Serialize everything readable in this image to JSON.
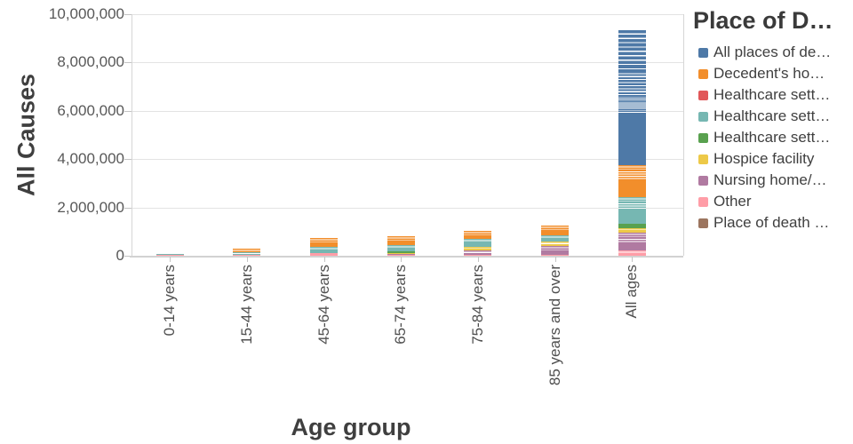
{
  "y_axis": {
    "title": "All Causes",
    "tick_labels": [
      "0",
      "2,000,000",
      "4,000,000",
      "6,000,000",
      "8,000,000",
      "10,000,000"
    ]
  },
  "x_axis": {
    "title": "Age group",
    "categories": [
      "0-14 years",
      "15-44 years",
      "45-64 years",
      "65-74 years",
      "75-84 years",
      "85 years and over",
      "All ages"
    ]
  },
  "legend": {
    "title": "Place of D…",
    "items": [
      {
        "label": "All places of de…",
        "key": "blue"
      },
      {
        "label": "Decedent's ho…",
        "key": "orange"
      },
      {
        "label": "Healthcare sett…",
        "key": "red"
      },
      {
        "label": "Healthcare sett…",
        "key": "teal"
      },
      {
        "label": "Healthcare sett…",
        "key": "green"
      },
      {
        "label": "Hospice facility",
        "key": "yellow"
      },
      {
        "label": "Nursing home/…",
        "key": "purple"
      },
      {
        "label": "Other",
        "key": "pink"
      },
      {
        "label": "Place of death …",
        "key": "brown"
      }
    ]
  },
  "colors": {
    "blue": "#4e79a7",
    "orange": "#f28e2b",
    "red": "#e15759",
    "teal": "#76b7b2",
    "green": "#59a14f",
    "yellow": "#edc948",
    "purple": "#b07aa1",
    "pink": "#ff9da7",
    "brown": "#9c755f"
  },
  "chart_data": {
    "type": "bar",
    "stacked": true,
    "title": "",
    "xlabel": "Age group",
    "ylabel": "All Causes",
    "ylim": [
      0,
      10000000
    ],
    "grid": true,
    "legend_position": "right",
    "legend_title": "Place of D…",
    "categories": [
      "0-14 years",
      "15-44 years",
      "45-64 years",
      "65-74 years",
      "75-84 years",
      "85 years and over",
      "All ages"
    ],
    "series": [
      {
        "name": "All places of de…",
        "key": "blue",
        "values": [
          0,
          0,
          0,
          0,
          0,
          0,
          5588000
        ]
      },
      {
        "name": "Decedent's ho…",
        "key": "orange",
        "values": [
          0,
          147000,
          368000,
          368000,
          331000,
          386000,
          1323000
        ]
      },
      {
        "name": "Healthcare sett…",
        "key": "red",
        "values": [
          0,
          0,
          0,
          0,
          0,
          0,
          0
        ]
      },
      {
        "name": "Healthcare sett…",
        "key": "teal",
        "values": [
          63000,
          92000,
          257000,
          276000,
          312000,
          257000,
          1103000
        ]
      },
      {
        "name": "Healthcare sett…",
        "key": "green",
        "values": [
          0,
          0,
          0,
          55000,
          0,
          0,
          184000
        ]
      },
      {
        "name": "Hospice facility",
        "key": "yellow",
        "values": [
          0,
          0,
          0,
          37000,
          166000,
          184000,
          184000
        ]
      },
      {
        "name": "Nursing home/…",
        "key": "purple",
        "values": [
          0,
          0,
          0,
          37000,
          148000,
          368000,
          735000
        ]
      },
      {
        "name": "Other",
        "key": "pink",
        "values": [
          29000,
          55000,
          110000,
          37000,
          55000,
          55000,
          221000
        ]
      },
      {
        "name": "Place of death …",
        "key": "brown",
        "values": [
          0,
          0,
          0,
          0,
          0,
          0,
          0
        ]
      }
    ],
    "render_stacks": [
      {
        "category": "0-14 years",
        "segments": [
          {
            "k": "pink",
            "v": 29000,
            "s": "solid"
          },
          {
            "k": "teal",
            "v": 63000,
            "s": "striped"
          }
        ]
      },
      {
        "category": "15-44 years",
        "segments": [
          {
            "k": "pink",
            "v": 55000,
            "s": "solid"
          },
          {
            "k": "teal",
            "v": 37000,
            "s": "solid"
          },
          {
            "k": "teal",
            "v": 55000,
            "s": "striped"
          },
          {
            "k": "orange",
            "v": 55000,
            "s": "solid"
          },
          {
            "k": "orange",
            "v": 92000,
            "s": "striped"
          }
        ]
      },
      {
        "category": "45-64 years",
        "segments": [
          {
            "k": "pink",
            "v": 110000,
            "s": "solid"
          },
          {
            "k": "teal",
            "v": 147000,
            "s": "solid"
          },
          {
            "k": "teal",
            "v": 110000,
            "s": "striped"
          },
          {
            "k": "orange",
            "v": 184000,
            "s": "solid"
          },
          {
            "k": "orange",
            "v": 184000,
            "s": "striped"
          }
        ]
      },
      {
        "category": "65-74 years",
        "segments": [
          {
            "k": "pink",
            "v": 37000,
            "s": "solid"
          },
          {
            "k": "purple",
            "v": 37000,
            "s": "striped"
          },
          {
            "k": "yellow",
            "v": 37000,
            "s": "solid"
          },
          {
            "k": "green",
            "v": 55000,
            "s": "solid"
          },
          {
            "k": "teal",
            "v": 129000,
            "s": "solid"
          },
          {
            "k": "teal",
            "v": 147000,
            "s": "striped"
          },
          {
            "k": "orange",
            "v": 147000,
            "s": "solid"
          },
          {
            "k": "orange",
            "v": 221000,
            "s": "striped"
          }
        ]
      },
      {
        "category": "75-84 years",
        "segments": [
          {
            "k": "pink",
            "v": 55000,
            "s": "solid"
          },
          {
            "k": "purple",
            "v": 74000,
            "s": "solid"
          },
          {
            "k": "purple",
            "v": 74000,
            "s": "striped"
          },
          {
            "k": "yellow",
            "v": 74000,
            "s": "solid"
          },
          {
            "k": "yellow",
            "v": 92000,
            "s": "striped"
          },
          {
            "k": "teal",
            "v": 165000,
            "s": "solid"
          },
          {
            "k": "teal",
            "v": 147000,
            "s": "striped"
          },
          {
            "k": "orange",
            "v": 129000,
            "s": "solid"
          },
          {
            "k": "orange",
            "v": 202000,
            "s": "striped"
          }
        ]
      },
      {
        "category": "85 years and over",
        "segments": [
          {
            "k": "pink",
            "v": 55000,
            "s": "solid"
          },
          {
            "k": "purple",
            "v": 184000,
            "s": "solid"
          },
          {
            "k": "purple",
            "v": 184000,
            "s": "striped"
          },
          {
            "k": "yellow",
            "v": 74000,
            "s": "solid"
          },
          {
            "k": "yellow",
            "v": 110000,
            "s": "striped"
          },
          {
            "k": "teal",
            "v": 147000,
            "s": "solid"
          },
          {
            "k": "teal",
            "v": 110000,
            "s": "striped"
          },
          {
            "k": "orange",
            "v": 147000,
            "s": "solid"
          },
          {
            "k": "orange",
            "v": 239000,
            "s": "striped"
          }
        ]
      },
      {
        "category": "All ages",
        "segments": [
          {
            "k": "pink",
            "v": 74000,
            "s": "solid"
          },
          {
            "k": "pink",
            "v": 147000,
            "s": "striped"
          },
          {
            "k": "purple",
            "v": 331000,
            "s": "solid"
          },
          {
            "k": "purple",
            "v": 404000,
            "s": "striped"
          },
          {
            "k": "yellow",
            "v": 92000,
            "s": "solid"
          },
          {
            "k": "yellow",
            "v": 92000,
            "s": "striped"
          },
          {
            "k": "green",
            "v": 184000,
            "s": "solid"
          },
          {
            "k": "teal",
            "v": 625000,
            "s": "solid"
          },
          {
            "k": "teal",
            "v": 478000,
            "s": "striped"
          },
          {
            "k": "orange",
            "v": 735000,
            "s": "solid"
          },
          {
            "k": "orange",
            "v": 588000,
            "s": "striped"
          },
          {
            "k": "blue",
            "v": 2169000,
            "s": "solid"
          },
          {
            "k": "blue",
            "v": 625000,
            "s": "fine"
          },
          {
            "k": "blue",
            "v": 1103000,
            "s": "mid"
          },
          {
            "k": "blue",
            "v": 1691000,
            "s": "coarse"
          }
        ]
      }
    ]
  }
}
